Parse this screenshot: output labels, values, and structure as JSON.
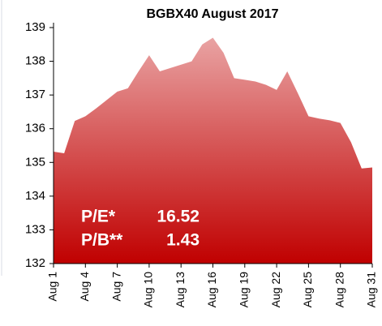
{
  "chart_data": {
    "type": "area",
    "title": "BGBX40 August 2017",
    "categories": [
      "Aug 1",
      null,
      null,
      "Aug 4",
      null,
      null,
      "Aug 7",
      null,
      null,
      "Aug 10",
      null,
      null,
      "Aug 13",
      null,
      null,
      "Aug 16",
      null,
      null,
      "Aug 19",
      null,
      null,
      "Aug 22",
      null,
      null,
      "Aug 25",
      null,
      null,
      "Aug 28",
      null,
      null,
      "Aug 31"
    ],
    "values": [
      135.32,
      135.27,
      136.23,
      136.37,
      136.6,
      136.85,
      137.1,
      137.2,
      137.7,
      138.18,
      137.7,
      137.8,
      137.9,
      138.0,
      138.5,
      138.7,
      138.25,
      137.5,
      137.45,
      137.4,
      137.3,
      137.15,
      137.7,
      137.05,
      136.37,
      136.3,
      136.25,
      136.17,
      135.6,
      134.82,
      134.85
    ],
    "color": "#c00000",
    "ylim": [
      132,
      139
    ],
    "yticks": [
      132,
      133,
      134,
      135,
      136,
      137,
      138,
      139
    ],
    "annotations": [
      "P/E*",
      "16.52",
      "P/B**",
      "1.43"
    ]
  }
}
